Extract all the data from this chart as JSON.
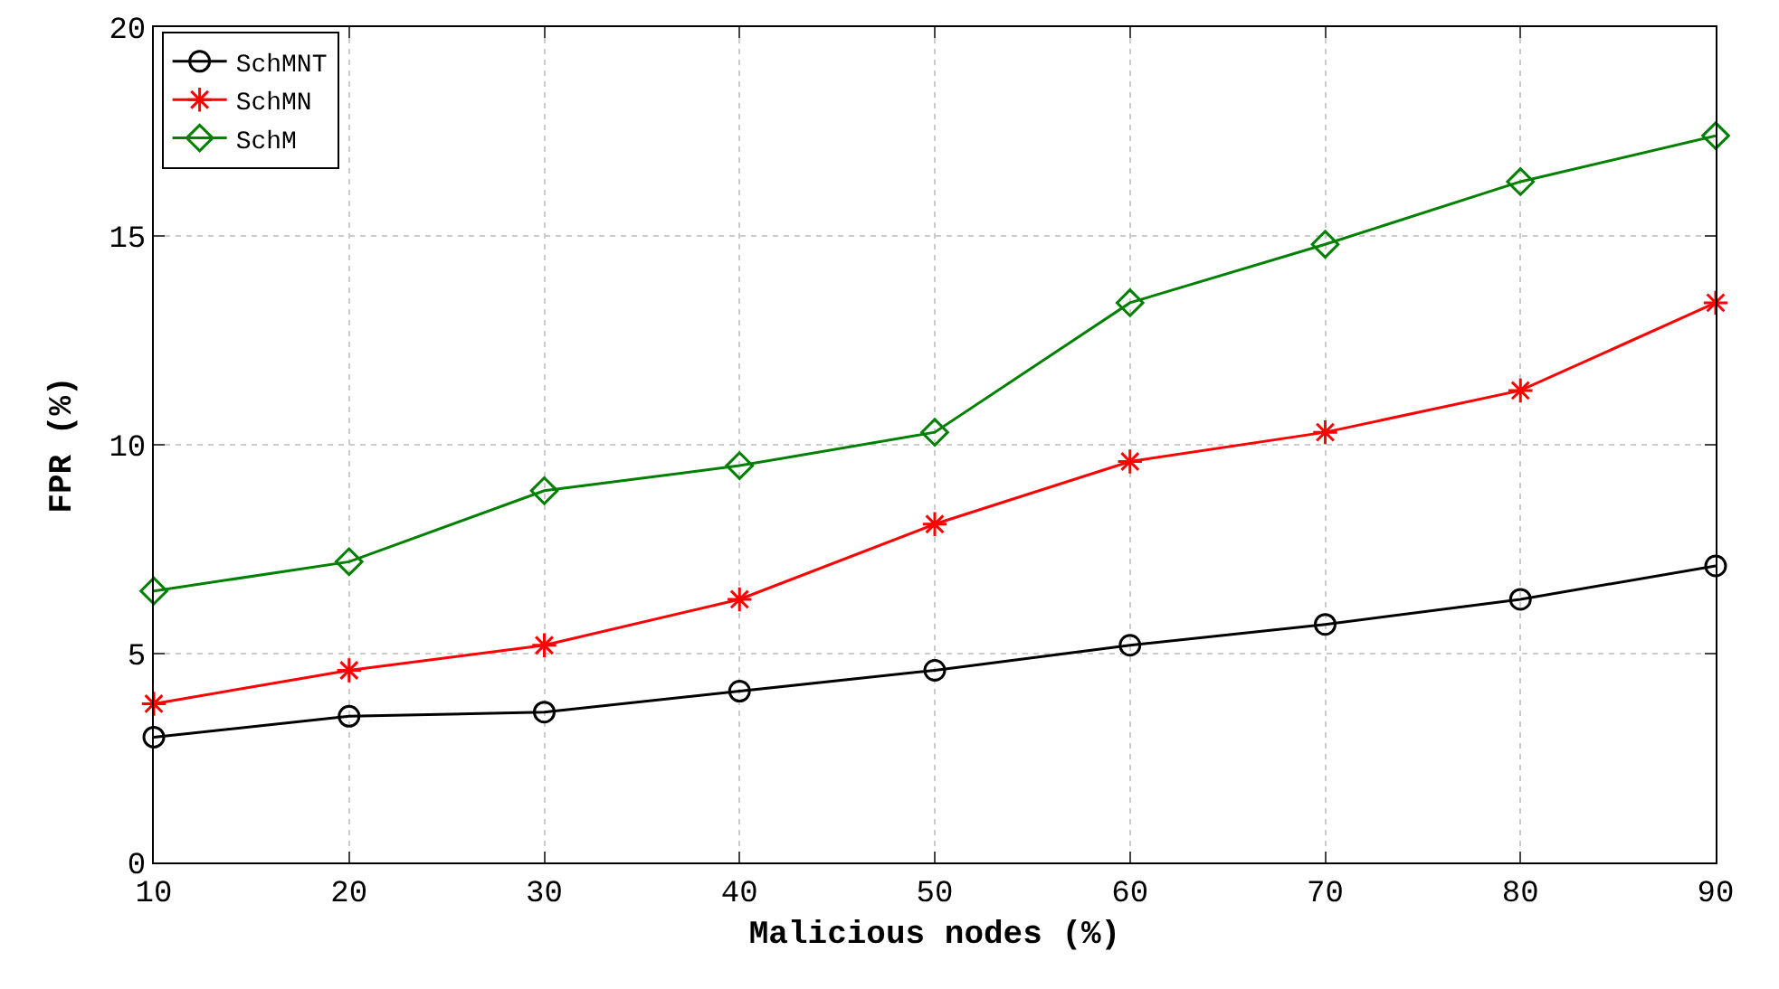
{
  "chart_data": {
    "type": "line",
    "xlabel": "Malicious nodes (%)",
    "ylabel": "FPR (%)",
    "x": [
      10,
      20,
      30,
      40,
      50,
      60,
      70,
      80,
      90
    ],
    "series": [
      {
        "name": "SchMNT",
        "color": "#000000",
        "marker": "circle",
        "values": [
          3.0,
          3.5,
          3.6,
          4.1,
          4.6,
          5.2,
          5.7,
          6.3,
          7.1
        ]
      },
      {
        "name": "SchMN",
        "color": "#ff0000",
        "marker": "cross",
        "values": [
          3.8,
          4.6,
          5.2,
          6.3,
          8.1,
          9.6,
          10.3,
          11.3,
          13.4
        ]
      },
      {
        "name": "SchM",
        "color": "#008000",
        "marker": "diamond",
        "values": [
          6.5,
          7.2,
          8.9,
          9.5,
          10.3,
          13.4,
          14.8,
          16.3,
          17.4
        ]
      }
    ],
    "xlim": [
      10,
      90
    ],
    "xticks": [
      10,
      20,
      30,
      40,
      50,
      60,
      70,
      80,
      90
    ],
    "ylim": [
      0,
      20
    ],
    "yticks": [
      0,
      5,
      10,
      15,
      20
    ],
    "grid": true,
    "legend": "top left",
    "line_style": "solid"
  }
}
